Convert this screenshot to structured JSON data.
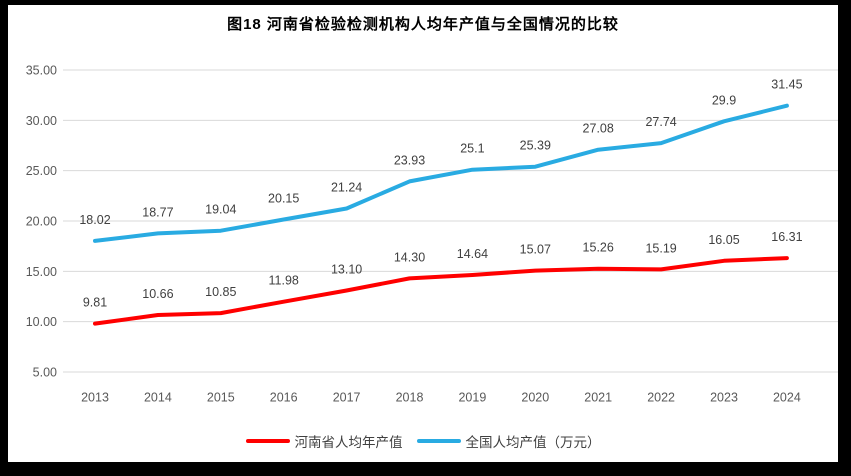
{
  "chart": {
    "title": "图18  河南省检验检测机构人均年产值与全国情况的比较"
  },
  "chart_data": {
    "type": "line",
    "title": "图18  河南省检验检测机构人均年产值与全国情况的比较",
    "categories": [
      "2013",
      "2014",
      "2015",
      "2016",
      "2017",
      "2018",
      "2019",
      "2020",
      "2021",
      "2022",
      "2023",
      "2024"
    ],
    "series": [
      {
        "name": "河南省人均年产值",
        "color": "#FF0000",
        "values": [
          9.81,
          10.66,
          10.85,
          11.98,
          13.1,
          14.3,
          14.64,
          15.07,
          15.26,
          15.19,
          16.05,
          16.31
        ],
        "labels": [
          "9.81",
          "10.66",
          "10.85",
          "11.98",
          "13.10",
          "14.30",
          "14.64",
          "15.07",
          "15.26",
          "15.19",
          "16.05",
          "16.31"
        ]
      },
      {
        "name": "全国人均产值（万元）",
        "color": "#29ABE2",
        "values": [
          18.02,
          18.77,
          19.04,
          20.15,
          21.24,
          23.93,
          25.1,
          25.39,
          27.08,
          27.74,
          29.9,
          31.45
        ],
        "labels": [
          "18.02",
          "18.77",
          "19.04",
          "20.15",
          "21.24",
          "23.93",
          "25.1",
          "25.39",
          "27.08",
          "27.74",
          "29.9",
          "31.45"
        ]
      }
    ],
    "ylim": [
      5,
      35
    ],
    "ytick_step": 5,
    "yticks": [
      "35.00",
      "30.00",
      "25.00",
      "20.00",
      "15.00",
      "10.00",
      "5.00"
    ],
    "xlabel": "",
    "ylabel": "",
    "grid": true,
    "legend_position": "bottom",
    "colors": {
      "grid": "#D9D9D9",
      "axis_text": "#595959",
      "data_label_text": "#404040",
      "title_text": "#000000",
      "plot_background": "#FFFFFF",
      "frame_border": "#000000"
    }
  }
}
